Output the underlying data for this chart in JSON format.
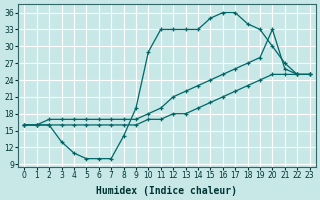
{
  "xlabel": "Humidex (Indice chaleur)",
  "bg_color": "#c8e8e8",
  "grid_color": "#ffffff",
  "line_color": "#006666",
  "xlim": [
    -0.5,
    23.5
  ],
  "ylim": [
    8.5,
    37.5
  ],
  "xticks": [
    0,
    1,
    2,
    3,
    4,
    5,
    6,
    7,
    8,
    9,
    10,
    11,
    12,
    13,
    14,
    15,
    16,
    17,
    18,
    19,
    20,
    21,
    22,
    23
  ],
  "yticks": [
    9,
    12,
    15,
    18,
    21,
    24,
    27,
    30,
    33,
    36
  ],
  "line1_x": [
    0,
    1,
    2,
    3,
    4,
    5,
    6,
    7,
    8,
    9,
    10,
    11,
    12,
    13,
    14,
    15,
    16,
    17,
    18,
    19,
    20,
    21,
    22,
    23
  ],
  "line1_y": [
    16,
    16,
    16,
    13,
    11,
    10,
    10,
    10,
    14,
    19,
    29,
    33,
    33,
    33,
    33,
    35,
    36,
    36,
    34,
    33,
    30,
    27,
    25,
    25
  ],
  "line2_x": [
    0,
    1,
    2,
    3,
    4,
    5,
    6,
    7,
    8,
    9,
    10,
    11,
    12,
    13,
    14,
    15,
    16,
    17,
    18,
    19,
    20,
    21,
    22,
    23
  ],
  "line2_y": [
    16,
    16,
    16,
    16,
    16,
    16,
    16,
    16,
    16,
    16,
    17,
    17,
    18,
    18,
    19,
    20,
    21,
    22,
    23,
    24,
    25,
    25,
    25,
    25
  ],
  "line3_x": [
    0,
    1,
    2,
    3,
    4,
    5,
    6,
    7,
    8,
    9,
    10,
    11,
    12,
    13,
    14,
    15,
    16,
    17,
    18,
    19,
    20,
    21,
    22,
    23
  ],
  "line3_y": [
    16,
    16,
    17,
    17,
    17,
    17,
    17,
    17,
    17,
    17,
    18,
    19,
    21,
    22,
    23,
    24,
    25,
    26,
    27,
    28,
    33,
    26,
    25,
    25
  ]
}
